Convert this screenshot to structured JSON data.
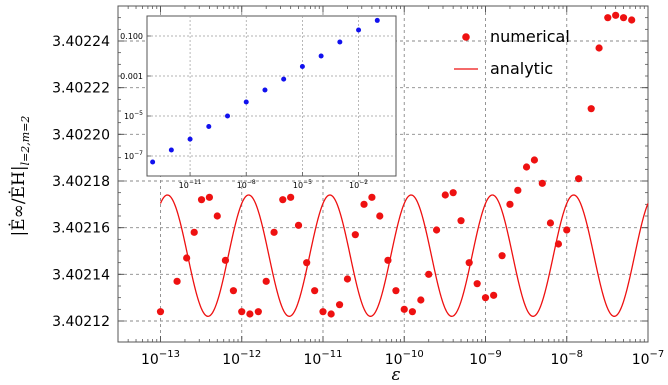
{
  "chart_data": [
    {
      "type": "scatter",
      "role": "main",
      "xscale": "log",
      "xlim": [
        3e-14,
        1e-07
      ],
      "ylim": [
        3.402111,
        3.402255
      ],
      "xticks": [
        1e-13,
        1e-12,
        1e-11,
        1e-10,
        1e-09,
        1e-08,
        1e-07
      ],
      "xtick_labels": [
        {
          "base": "10",
          "exp": "−13"
        },
        {
          "base": "10",
          "exp": "−12"
        },
        {
          "base": "10",
          "exp": "−11"
        },
        {
          "base": "10",
          "exp": "−10"
        },
        {
          "base": "10",
          "exp": "−9"
        },
        {
          "base": "10",
          "exp": "−8"
        },
        {
          "base": "10",
          "exp": "−7"
        }
      ],
      "yticks": [
        3.40212,
        3.40214,
        3.40216,
        3.40218,
        3.4022,
        3.40222,
        3.40224
      ],
      "ytick_labels": [
        "3.40212",
        "3.40214",
        "3.40216",
        "3.40218",
        "3.40220",
        "3.40222",
        "3.40224"
      ],
      "xlabel": "ε",
      "ylabel": {
        "main": "|Ė∞/ĖH|",
        "subscript": "l=2,m=2"
      },
      "grid": true,
      "legend": {
        "placement": "top-right",
        "entries": [
          {
            "label": "numerical",
            "marker": "dot",
            "color": "#ee1111"
          },
          {
            "label": "analytic",
            "marker": "line",
            "color": "#ee1111"
          }
        ]
      },
      "series": [
        {
          "name": "numerical",
          "kind": "points",
          "color": "#ee1111",
          "points": [
            [
              1e-13,
              3.402124
            ],
            [
              1.6e-13,
              3.402137
            ],
            [
              2.1e-13,
              3.402147
            ],
            [
              2.6e-13,
              3.402158
            ],
            [
              3.2e-13,
              3.402172
            ],
            [
              4e-13,
              3.402173
            ],
            [
              5e-13,
              3.402165
            ],
            [
              6.3e-13,
              3.402146
            ],
            [
              7.9e-13,
              3.402133
            ],
            [
              1e-12,
              3.402124
            ],
            [
              1.26e-12,
              3.402123
            ],
            [
              1.6e-12,
              3.402124
            ],
            [
              2e-12,
              3.402137
            ],
            [
              2.5e-12,
              3.402158
            ],
            [
              3.2e-12,
              3.402172
            ],
            [
              4e-12,
              3.402173
            ],
            [
              5e-12,
              3.402161
            ],
            [
              6.3e-12,
              3.402145
            ],
            [
              7.9e-12,
              3.402133
            ],
            [
              1e-11,
              3.402124
            ],
            [
              1.26e-11,
              3.402123
            ],
            [
              1.6e-11,
              3.402127
            ],
            [
              2e-11,
              3.402138
            ],
            [
              2.5e-11,
              3.402157
            ],
            [
              3.2e-11,
              3.40217
            ],
            [
              4e-11,
              3.402173
            ],
            [
              5e-11,
              3.402165
            ],
            [
              6.3e-11,
              3.402146
            ],
            [
              7.9e-11,
              3.402133
            ],
            [
              1e-10,
              3.402125
            ],
            [
              1.26e-10,
              3.402124
            ],
            [
              1.6e-10,
              3.402129
            ],
            [
              2e-10,
              3.40214
            ],
            [
              2.5e-10,
              3.402159
            ],
            [
              3.2e-10,
              3.402174
            ],
            [
              4e-10,
              3.402175
            ],
            [
              5e-10,
              3.402163
            ],
            [
              6.3e-10,
              3.402145
            ],
            [
              7.9e-10,
              3.402136
            ],
            [
              1e-09,
              3.40213
            ],
            [
              1.26e-09,
              3.402131
            ],
            [
              1.6e-09,
              3.402148
            ],
            [
              2e-09,
              3.40217
            ],
            [
              2.5e-09,
              3.402176
            ],
            [
              3.2e-09,
              3.402186
            ],
            [
              4e-09,
              3.402189
            ],
            [
              5e-09,
              3.402179
            ],
            [
              6.3e-09,
              3.402162
            ],
            [
              7.9e-09,
              3.402153
            ],
            [
              1e-08,
              3.402159
            ],
            [
              1.4e-08,
              3.402181
            ],
            [
              2e-08,
              3.402211
            ],
            [
              2.5e-08,
              3.402237
            ],
            [
              3.2e-08,
              3.40225
            ],
            [
              4e-08,
              3.402251
            ],
            [
              5e-08,
              3.40225
            ],
            [
              6.3e-08,
              3.402249
            ]
          ]
        },
        {
          "name": "analytic",
          "kind": "line",
          "color": "#ee1111",
          "function": "3.402148 + 0.000026 * sin(2*pi*log10(ε) + 0.33*pi)"
        }
      ]
    },
    {
      "type": "scatter",
      "role": "inset",
      "xscale": "log",
      "yscale": "log",
      "xlim": [
        5e-14,
        1.0
      ],
      "ylim": [
        1e-08,
        1
      ],
      "xticks": [
        1e-11,
        1e-08,
        1e-05,
        0.01
      ],
      "xtick_labels": [
        {
          "base": "10",
          "exp": "−11"
        },
        {
          "base": "10",
          "exp": "−8"
        },
        {
          "base": "10",
          "exp": "−5"
        },
        {
          "base": "10",
          "exp": "−2"
        }
      ],
      "yticks": [
        1e-07,
        1e-05,
        0.001,
        0.1
      ],
      "ytick_labels": [
        {
          "base": "10",
          "exp": "−7"
        },
        {
          "base": "10",
          "exp": "−5"
        },
        {
          "base": "",
          "exp": "0.001",
          "plain": true
        },
        {
          "base": "",
          "exp": "0.100",
          "plain": true
        }
      ],
      "grid": true,
      "series": [
        {
          "name": "",
          "kind": "points",
          "color": "#1111ee",
          "points": [
            [
              1e-13,
              5e-08
            ],
            [
              1e-12,
              2e-07
            ],
            [
              1e-11,
              7e-07
            ],
            [
              1e-10,
              3e-06
            ],
            [
              1e-09,
              1e-05
            ],
            [
              1e-08,
              5e-05
            ],
            [
              1e-07,
              0.0002
            ],
            [
              1e-06,
              0.0007
            ],
            [
              1e-05,
              0.003
            ],
            [
              0.0001,
              0.01
            ],
            [
              0.001,
              0.05
            ],
            [
              0.01,
              0.2
            ],
            [
              0.1,
              0.6
            ]
          ]
        }
      ]
    }
  ]
}
